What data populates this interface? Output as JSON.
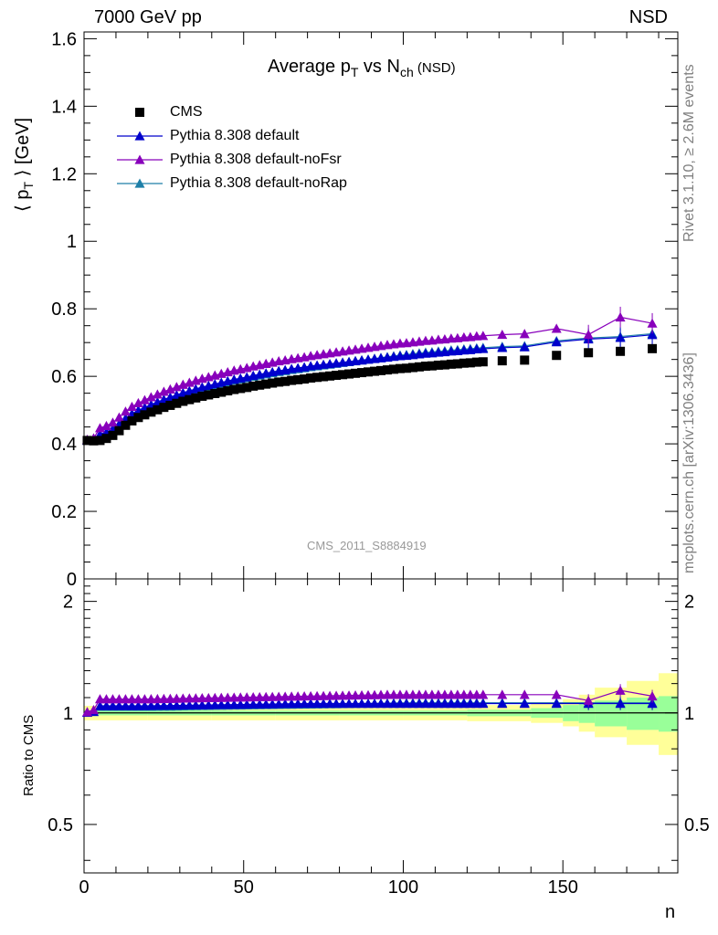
{
  "header": {
    "left": "7000 GeV pp",
    "right": "NSD"
  },
  "side_labels": {
    "rivet": "Rivet 3.1.10, ≥ 2.6M events",
    "mcplots": "mcplots.cern.ch [arXiv:1306.3436]"
  },
  "analysis_id": "CMS_2011_S8884919",
  "chart_data": {
    "type": "scatter",
    "title": {
      "main": "Average p",
      "sub1": "T",
      "mid": " vs N",
      "sub2": "ch",
      "suffix": " (NSD)"
    },
    "xlabel": "n",
    "ylabel": {
      "pre": "⟨ p",
      "sub": "T",
      "post": " ⟩ [GeV]"
    },
    "ratio_ylabel": "Ratio to CMS",
    "xlim": [
      0,
      186
    ],
    "ylim": [
      0,
      1.62
    ],
    "ratio_ylim": [
      0.37,
      2.3
    ],
    "x_ticks": [
      0,
      50,
      100,
      150
    ],
    "y_ticks": [
      0,
      0.2,
      0.4,
      0.6,
      0.8,
      1,
      1.2,
      1.4,
      1.6
    ],
    "y_tick_labels": [
      "0",
      "0.2",
      "0.4",
      "0.6",
      "0.8",
      "1",
      "1.2",
      "1.4",
      "1.6"
    ],
    "ratio_ticks": [
      0.5,
      1,
      2
    ],
    "ratio_tick_labels": [
      "0.5",
      "1",
      "2"
    ],
    "legend": [
      "CMS",
      "Pythia 8.308 default",
      "Pythia 8.308 default-noFsr",
      "Pythia 8.308 default-noRap"
    ],
    "colors": {
      "cms": "#000000",
      "default": "#0000cc",
      "noFsr": "#8800bb",
      "noRap": "#1e7fa8",
      "band_inner": "#99ff99",
      "band_outer": "#ffff99"
    },
    "cms": {
      "x": [
        1,
        3,
        5,
        7,
        9,
        11,
        13,
        15,
        17,
        19,
        21,
        23,
        25,
        27,
        29,
        31,
        33,
        35,
        37,
        39,
        41,
        43,
        45,
        47,
        49,
        51,
        53,
        55,
        57,
        59,
        61,
        63,
        65,
        67,
        69,
        71,
        73,
        75,
        77,
        79,
        81,
        83,
        85,
        87,
        89,
        91,
        93,
        95,
        97,
        99,
        101,
        103,
        105,
        107,
        109,
        111,
        113,
        115,
        117,
        119,
        121,
        123,
        125,
        131,
        138,
        148,
        158,
        168,
        178
      ],
      "y": [
        0.41,
        0.409,
        0.41,
        0.416,
        0.425,
        0.439,
        0.455,
        0.468,
        0.478,
        0.486,
        0.494,
        0.501,
        0.508,
        0.514,
        0.52,
        0.526,
        0.531,
        0.536,
        0.541,
        0.545,
        0.549,
        0.553,
        0.557,
        0.561,
        0.564,
        0.567,
        0.571,
        0.574,
        0.577,
        0.58,
        0.583,
        0.585,
        0.588,
        0.59,
        0.592,
        0.595,
        0.597,
        0.599,
        0.601,
        0.603,
        0.605,
        0.607,
        0.609,
        0.611,
        0.613,
        0.615,
        0.617,
        0.619,
        0.621,
        0.623,
        0.624,
        0.626,
        0.628,
        0.63,
        0.631,
        0.633,
        0.634,
        0.636,
        0.637,
        0.639,
        0.64,
        0.642,
        0.643,
        0.646,
        0.648,
        0.662,
        0.67,
        0.674,
        0.682
      ]
    },
    "ratio_band": {
      "x_edges": [
        0,
        20,
        40,
        60,
        80,
        100,
        120,
        140,
        150,
        155,
        160,
        170,
        180,
        186
      ],
      "inner": [
        [
          0.985,
          1.015
        ],
        [
          0.985,
          1.015
        ],
        [
          0.985,
          1.015
        ],
        [
          0.985,
          1.015
        ],
        [
          0.985,
          1.015
        ],
        [
          0.985,
          1.015
        ],
        [
          0.98,
          1.02
        ],
        [
          0.97,
          1.03
        ],
        [
          0.95,
          1.05
        ],
        [
          0.94,
          1.06
        ],
        [
          0.92,
          1.08
        ],
        [
          0.9,
          1.1
        ],
        [
          0.89,
          1.11
        ]
      ],
      "outer": [
        [
          0.955,
          1.045
        ],
        [
          0.955,
          1.045
        ],
        [
          0.955,
          1.045
        ],
        [
          0.955,
          1.045
        ],
        [
          0.955,
          1.045
        ],
        [
          0.955,
          1.045
        ],
        [
          0.95,
          1.05
        ],
        [
          0.94,
          1.06
        ],
        [
          0.92,
          1.09
        ],
        [
          0.89,
          1.12
        ],
        [
          0.86,
          1.17
        ],
        [
          0.82,
          1.22
        ],
        [
          0.77,
          1.28
        ]
      ]
    }
  }
}
